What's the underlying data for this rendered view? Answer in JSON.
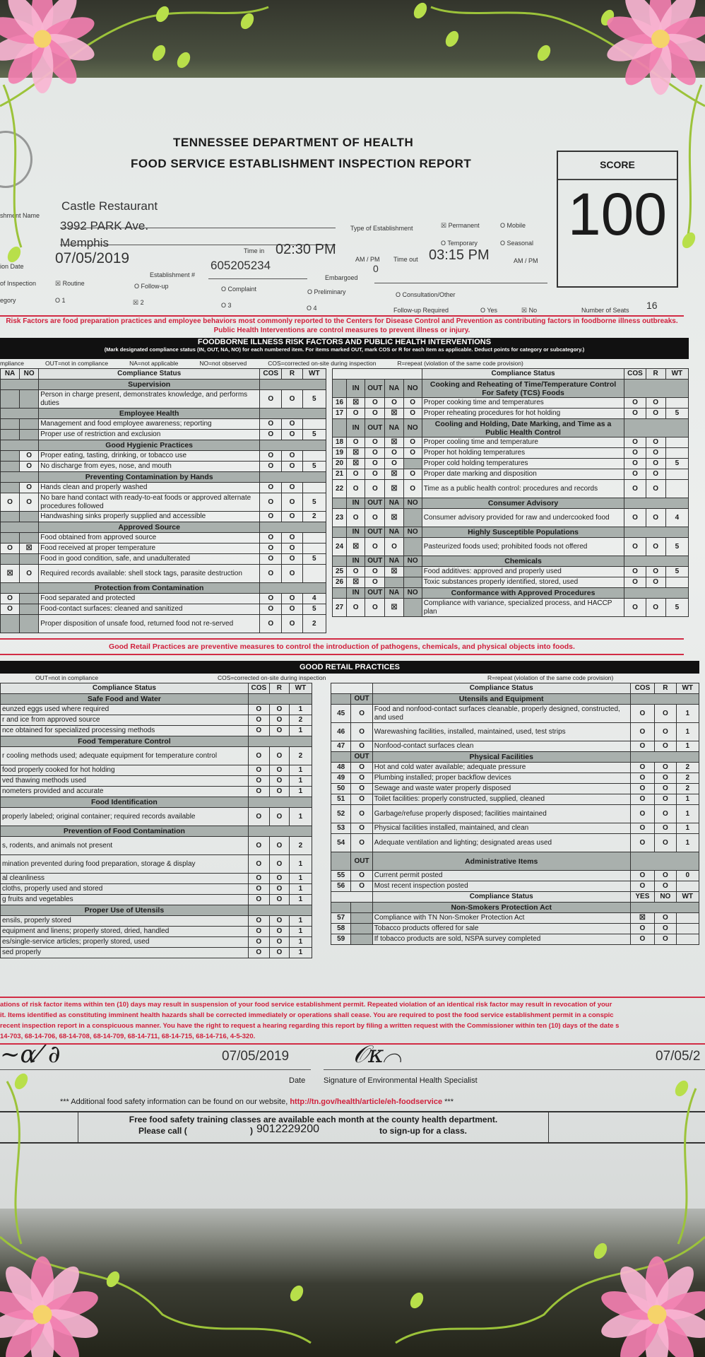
{
  "header": {
    "agency": "TENNESSEE DEPARTMENT OF HEALTH",
    "title": "FOOD SERVICE ESTABLISHMENT INSPECTION REPORT",
    "score_label": "SCORE",
    "score": "100"
  },
  "establishment": {
    "name_label": "shment Name",
    "name": "Castle Restaurant",
    "address": "3992 PARK Ave.",
    "city": "Memphis",
    "date_label": "ion Date",
    "date": "07/05/2019",
    "est_num_label": "Establishment #",
    "est_num": "605205234",
    "time_in_label": "Time in",
    "time_in": "02:30 PM",
    "time_out_label": "Time out",
    "time_out": "03:15 PM",
    "ampm": "AM / PM",
    "embargoed_label": "Embargoed",
    "embargoed": "0",
    "type_label": "Type of Establishment",
    "types": [
      "☒ Permanent",
      "O Mobile",
      "O Temporary",
      "O Seasonal"
    ],
    "purpose_label": "of Inspection",
    "purposes": [
      "☒ Routine",
      "O Follow-up",
      "O Complaint",
      "O Preliminary",
      "O Consultation/Other"
    ],
    "risk_label": "egory",
    "risks": [
      "O 1",
      "☒ 2",
      "O 3",
      "O 4"
    ],
    "followup_label": "Follow-up Required",
    "followup": [
      "O Yes",
      "☒ No"
    ],
    "seats_label": "Number of Seats",
    "seats": "16"
  },
  "risk_notice": "Risk Factors are food preparation practices and employee behaviors most commonly reported to the Centers for Disease Control and Prevention as contributing factors in foodborne illness outbreaks. Public Health Interventions are control measures to prevent illness or injury.",
  "risk_section": {
    "title": "FOODBORNE ILLNESS RISK FACTORS AND PUBLIC HEALTH INTERVENTIONS",
    "instructions": "(Mark designated compliance status (IN, OUT, NA, NO) for each numbered item. For items marked OUT, mark COS or R for each item as applicable. Deduct points for category or subcategory.)",
    "legend": [
      "mpliance",
      "OUT=not in compliance",
      "NA=not applicable",
      "NO=not observed",
      "COS=corrected on-site during inspection",
      "R=repeat (violation of the same code provision)"
    ],
    "status_header": "Compliance Status",
    "col_cos": "COS",
    "col_r": "R",
    "col_wt": "WT",
    "left_cols": [
      "NA",
      "NO"
    ],
    "right_cols": [
      "IN",
      "OUT",
      "NA",
      "NO"
    ],
    "left_rows": [
      {
        "section": "Supervision"
      },
      {
        "marks": [
          "",
          ""
        ],
        "text": "Person in charge present, demonstrates knowledge, and performs duties",
        "cos": "O",
        "r": "O",
        "wt": "5",
        "tall": true
      },
      {
        "section": "Employee Health"
      },
      {
        "marks": [
          "",
          ""
        ],
        "text": "Management and food employee awareness; reporting",
        "cos": "O",
        "r": "O",
        "wt": ""
      },
      {
        "marks": [
          "",
          ""
        ],
        "text": "Proper use of restriction and exclusion",
        "cos": "O",
        "r": "O",
        "wt": "5"
      },
      {
        "section": "Good Hygienic Practices"
      },
      {
        "marks": [
          "",
          "O"
        ],
        "text": "Proper eating, tasting, drinking, or tobacco use",
        "cos": "O",
        "r": "O",
        "wt": ""
      },
      {
        "marks": [
          "",
          "O"
        ],
        "text": "No discharge from eyes, nose, and mouth",
        "cos": "O",
        "r": "O",
        "wt": "5"
      },
      {
        "section": "Preventing Contamination by Hands"
      },
      {
        "marks": [
          "",
          "O"
        ],
        "text": "Hands clean and properly washed",
        "cos": "O",
        "r": "O",
        "wt": ""
      },
      {
        "marks": [
          "O",
          "O"
        ],
        "text": "No bare hand contact with ready-to-eat foods or approved alternate procedures followed",
        "cos": "O",
        "r": "O",
        "wt": "5",
        "tall": true
      },
      {
        "marks": [
          "",
          ""
        ],
        "text": "Handwashing sinks properly supplied and accessible",
        "cos": "O",
        "r": "O",
        "wt": "2"
      },
      {
        "section": "Approved Source"
      },
      {
        "marks": [
          "",
          ""
        ],
        "text": "Food obtained from approved source",
        "cos": "O",
        "r": "O",
        "wt": ""
      },
      {
        "marks": [
          "O",
          "☒"
        ],
        "text": "Food received at proper temperature",
        "cos": "O",
        "r": "O",
        "wt": ""
      },
      {
        "marks": [
          "",
          ""
        ],
        "text": "Food in good condition, safe, and unadulterated",
        "cos": "O",
        "r": "O",
        "wt": "5"
      },
      {
        "marks": [
          "☒",
          "O"
        ],
        "text": "Required records available: shell stock tags, parasite destruction",
        "cos": "O",
        "r": "O",
        "wt": "",
        "tall": true
      },
      {
        "section": "Protection from Contamination"
      },
      {
        "marks": [
          "O",
          ""
        ],
        "text": "Food separated and protected",
        "cos": "O",
        "r": "O",
        "wt": "4"
      },
      {
        "marks": [
          "O",
          ""
        ],
        "text": "Food-contact surfaces: cleaned and sanitized",
        "cos": "O",
        "r": "O",
        "wt": "5"
      },
      {
        "marks": [
          "",
          ""
        ],
        "text": "Proper disposition of unsafe food, returned food not re-served",
        "cos": "O",
        "r": "O",
        "wt": "2",
        "tall": true
      }
    ],
    "right_rows": [
      {
        "section": "Cooking and Reheating of Time/Temperature Control For Safety (TCS) Foods",
        "cols": true
      },
      {
        "num": "16",
        "marks": [
          "☒",
          "O",
          "O",
          "O"
        ],
        "text": "Proper cooking time and temperatures",
        "cos": "O",
        "r": "O",
        "wt": ""
      },
      {
        "num": "17",
        "marks": [
          "O",
          "O",
          "☒",
          "O"
        ],
        "text": "Proper reheating procedures for hot holding",
        "cos": "O",
        "r": "O",
        "wt": "5"
      },
      {
        "section": "Cooling and Holding, Date Marking, and Time as a Public Health Control",
        "cols": true
      },
      {
        "num": "18",
        "marks": [
          "O",
          "O",
          "☒",
          "O"
        ],
        "text": "Proper cooling time and temperature",
        "cos": "O",
        "r": "O",
        "wt": ""
      },
      {
        "num": "19",
        "marks": [
          "☒",
          "O",
          "O",
          "O"
        ],
        "text": "Proper hot holding temperatures",
        "cos": "O",
        "r": "O",
        "wt": ""
      },
      {
        "num": "20",
        "marks": [
          "☒",
          "O",
          "O",
          ""
        ],
        "text": "Proper cold holding temperatures",
        "cos": "O",
        "r": "O",
        "wt": "5"
      },
      {
        "num": "21",
        "marks": [
          "O",
          "O",
          "☒",
          "O"
        ],
        "text": "Proper date marking and disposition",
        "cos": "O",
        "r": "O",
        "wt": ""
      },
      {
        "num": "22",
        "marks": [
          "O",
          "O",
          "☒",
          "O"
        ],
        "text": "Time as a public health control: procedures and records",
        "cos": "O",
        "r": "O",
        "wt": "",
        "tall": true
      },
      {
        "section": "Consumer Advisory",
        "cols": true
      },
      {
        "num": "23",
        "marks": [
          "O",
          "O",
          "☒",
          ""
        ],
        "text": "Consumer advisory provided for raw and undercooked food",
        "cos": "O",
        "r": "O",
        "wt": "4",
        "tall": true
      },
      {
        "section": "Highly Susceptible Populations",
        "cols": true
      },
      {
        "num": "24",
        "marks": [
          "☒",
          "O",
          "O",
          ""
        ],
        "text": "Pasteurized foods used; prohibited foods not offered",
        "cos": "O",
        "r": "O",
        "wt": "5",
        "tall": true
      },
      {
        "section": "Chemicals",
        "cols": true
      },
      {
        "num": "25",
        "marks": [
          "O",
          "O",
          "☒",
          ""
        ],
        "text": "Food additives: approved and properly used",
        "cos": "O",
        "r": "O",
        "wt": "5"
      },
      {
        "num": "26",
        "marks": [
          "☒",
          "O",
          "",
          ""
        ],
        "text": "Toxic substances properly identified, stored, used",
        "cos": "O",
        "r": "O",
        "wt": ""
      },
      {
        "section": "Conformance with Approved Procedures",
        "cols": true
      },
      {
        "num": "27",
        "marks": [
          "O",
          "O",
          "☒",
          ""
        ],
        "text": "Compliance with variance, specialized process, and HACCP plan",
        "cos": "O",
        "r": "O",
        "wt": "5",
        "tall": true
      }
    ]
  },
  "retail_notice": "Good Retail Practices are preventive measures to control the introduction of pathogens, chemicals, and physical objects into foods.",
  "retail_section": {
    "title": "GOOD RETAIL PRACTICES",
    "legend": [
      "OUT=not in compliance",
      "COS=corrected on-site during inspection",
      "R=repeat (violation of the same code provision)"
    ],
    "status_header": "Compliance Status",
    "col_out": "OUT",
    "yes_no_wt": [
      "YES",
      "NO",
      "WT"
    ],
    "left_rows": [
      {
        "section": "Safe Food and Water"
      },
      {
        "text": "eunzed eggs used where required",
        "cos": "O",
        "r": "O",
        "wt": "1"
      },
      {
        "text": "r and ice from approved source",
        "cos": "O",
        "r": "O",
        "wt": "2"
      },
      {
        "text": "nce obtained for specialized processing methods",
        "cos": "O",
        "r": "O",
        "wt": "1"
      },
      {
        "section": "Food Temperature Control"
      },
      {
        "text": "r cooling methods used; adequate equipment for temperature control",
        "cos": "O",
        "r": "O",
        "wt": "2",
        "tall": true
      },
      {
        "text": "food properly cooked for hot holding",
        "cos": "O",
        "r": "O",
        "wt": "1"
      },
      {
        "text": "ved thawing methods used",
        "cos": "O",
        "r": "O",
        "wt": "1"
      },
      {
        "text": "nometers provided and accurate",
        "cos": "O",
        "r": "O",
        "wt": "1"
      },
      {
        "section": "Food Identification"
      },
      {
        "text": "properly labeled; original container; required records available",
        "cos": "O",
        "r": "O",
        "wt": "1",
        "tall": true
      },
      {
        "section": "Prevention of Food Contamination"
      },
      {
        "text": "s, rodents, and animals not present",
        "cos": "O",
        "r": "O",
        "wt": "2",
        "tall": true
      },
      {
        "text": "mination prevented during food preparation, storage & display",
        "cos": "O",
        "r": "O",
        "wt": "1",
        "tall": true
      },
      {
        "text": "al cleanliness",
        "cos": "O",
        "r": "O",
        "wt": "1"
      },
      {
        "text": "cloths, properly used and stored",
        "cos": "O",
        "r": "O",
        "wt": "1"
      },
      {
        "text": "g fruits and vegetables",
        "cos": "O",
        "r": "O",
        "wt": "1"
      },
      {
        "section": "Proper Use of Utensils"
      },
      {
        "text": "ensils, properly stored",
        "cos": "O",
        "r": "O",
        "wt": "1"
      },
      {
        "text": "equipment and linens; properly stored, dried, handled",
        "cos": "O",
        "r": "O",
        "wt": "1"
      },
      {
        "text": "es/single-service articles; properly stored, used",
        "cos": "O",
        "r": "O",
        "wt": "1"
      },
      {
        "text": "sed properly",
        "cos": "O",
        "r": "O",
        "wt": "1"
      }
    ],
    "right_rows": [
      {
        "section": "Utensils and Equipment",
        "cols": true
      },
      {
        "num": "45",
        "out": "O",
        "text": "Food and nonfood-contact surfaces cleanable, properly designed, constructed, and used",
        "cos": "O",
        "r": "O",
        "wt": "1",
        "tall": true
      },
      {
        "num": "46",
        "out": "O",
        "text": "Warewashing facilities, installed, maintained, used, test strips",
        "cos": "O",
        "r": "O",
        "wt": "1",
        "tall": true
      },
      {
        "num": "47",
        "out": "O",
        "text": "Nonfood-contact surfaces clean",
        "cos": "O",
        "r": "O",
        "wt": "1"
      },
      {
        "section": "Physical Facilities",
        "cols": true
      },
      {
        "num": "48",
        "out": "O",
        "text": "Hot and cold water available; adequate pressure",
        "cos": "O",
        "r": "O",
        "wt": "2"
      },
      {
        "num": "49",
        "out": "O",
        "text": "Plumbing installed; proper backflow devices",
        "cos": "O",
        "r": "O",
        "wt": "2"
      },
      {
        "num": "50",
        "out": "O",
        "text": "Sewage and waste water properly disposed",
        "cos": "O",
        "r": "O",
        "wt": "2"
      },
      {
        "num": "51",
        "out": "O",
        "text": "Toilet facilities: properly constructed, supplied, cleaned",
        "cos": "O",
        "r": "O",
        "wt": "1"
      },
      {
        "num": "52",
        "out": "O",
        "text": "Garbage/refuse properly disposed; facilities maintained",
        "cos": "O",
        "r": "O",
        "wt": "1",
        "tall": true
      },
      {
        "num": "53",
        "out": "O",
        "text": "Physical facilities installed, maintained, and clean",
        "cos": "O",
        "r": "O",
        "wt": "1"
      },
      {
        "num": "54",
        "out": "O",
        "text": "Adequate ventilation and lighting; designated areas used",
        "cos": "O",
        "r": "O",
        "wt": "1",
        "tall": true
      },
      {
        "section": "Administrative Items",
        "cols": true,
        "tall": true
      },
      {
        "num": "55",
        "out": "O",
        "text": "Current permit posted",
        "cos": "O",
        "r": "O",
        "wt": "0"
      },
      {
        "num": "56",
        "out": "O",
        "text": "Most recent inspection posted",
        "cos": "O",
        "r": "O",
        "wt": ""
      },
      {
        "status": true
      },
      {
        "section": "Non-Smokers Protection Act"
      },
      {
        "num": "57",
        "out": "",
        "text": "Compliance with TN Non-Smoker Protection Act",
        "cos": "☒",
        "r": "O",
        "wt": ""
      },
      {
        "num": "58",
        "out": "",
        "text": "Tobacco products offered for sale",
        "cos": "O",
        "r": "O",
        "wt": ""
      },
      {
        "num": "59",
        "out": "",
        "text": "If tobacco products are sold, NSPA survey completed",
        "cos": "O",
        "r": "O",
        "wt": ""
      }
    ]
  },
  "final_notice": [
    "ations of risk factor items within ten (10) days may result in suspension of your food service establishment permit. Repeated violation of an identical risk factor may result in revocation of your",
    "it. Items identified as constituting imminent health hazards shall be corrected immediately or operations shall cease. You are required to post the food service establishment permit in a conspic",
    "recent inspection report in a conspicuous manner. You have the right to request a hearing regarding this report by filing a written request with the Commissioner within ten (10) days of the date s",
    "14-703, 68-14-706, 68-14-708, 68-14-709, 68-14-711, 68-14-715, 68-14-716, 4-5-320."
  ],
  "signatures": {
    "date1": "07/05/2019",
    "date_label": "Date",
    "specialist_label": "Signature of Environmental Health Specialist",
    "date2": "07/05/2"
  },
  "website": {
    "prefix": "*** Additional food safety information can be found on our website,",
    "url": "http://tn.gov/health/article/eh-foodservice",
    "suffix": "***"
  },
  "training": {
    "line1": "Free food safety training classes are available each month at the county health department.",
    "please_call": "Please call (",
    "close_paren": ")",
    "phone": "9012229200",
    "signup": "to sign-up for a class."
  },
  "colors": {
    "notice_red": "#d0203c",
    "section_grey": "#a9b0ad",
    "frame_pink": "#f27fb0",
    "vine_green": "#9cc33a"
  }
}
